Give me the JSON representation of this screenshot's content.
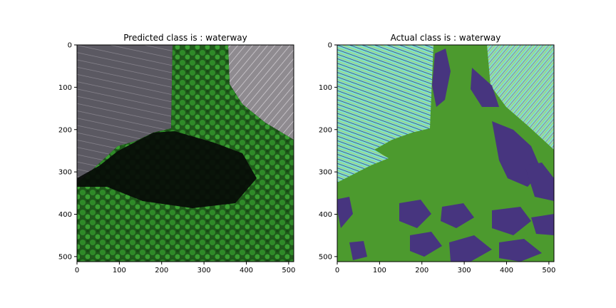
{
  "chart_data": [
    {
      "type": "image",
      "title": "Predicted class is : waterway",
      "xlim": [
        0,
        512
      ],
      "ylim": [
        512,
        0
      ],
      "xticks": [
        0,
        100,
        200,
        300,
        400,
        500
      ],
      "yticks": [
        0,
        100,
        200,
        300,
        400,
        500
      ],
      "content": "aerial RGB image: farmland with tractor tracks, tree canopy and shadow"
    },
    {
      "type": "image",
      "title": "Actual class is : waterway",
      "xlim": [
        0,
        512
      ],
      "ylim": [
        512,
        0
      ],
      "xticks": [
        0,
        100,
        200,
        300,
        400,
        500
      ],
      "yticks": [
        0,
        100,
        200,
        300,
        400,
        500
      ],
      "content": "segmentation mask overlay: green (vegetation), purple, cyan (field) classes"
    }
  ],
  "colors": {
    "mask_green": "#4c9a2e",
    "mask_purple": "#47357f",
    "mask_cyan": "#79e3d0",
    "mask_yellow": "#c9c84a"
  }
}
